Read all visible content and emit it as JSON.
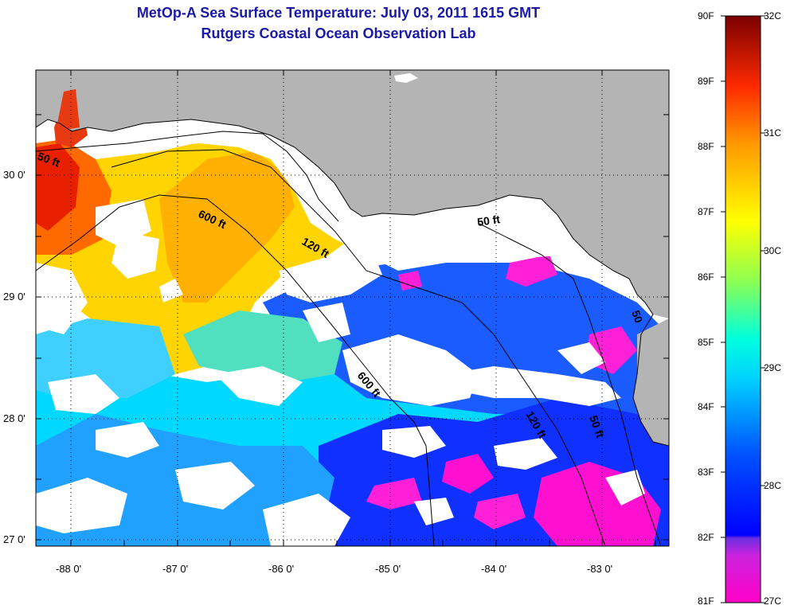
{
  "header": {
    "title": "MetOp-A Sea Surface Temperature:  July 03, 2011 1615 GMT",
    "subtitle": "Rutgers Coastal Ocean Observation Lab"
  },
  "map": {
    "lat_ticks": [
      "30 0'",
      "29 0'",
      "28 0'",
      "27 0'"
    ],
    "lon_ticks": [
      "-88 0'",
      "-87 0'",
      "-86 0'",
      "-85 0'",
      "-84 0'",
      "-83 0'"
    ],
    "contour_labels": [
      "50 ft",
      "600 ft",
      "120 ft",
      "50 ft",
      "600 ft",
      "120 ft",
      "50 ft",
      "50"
    ],
    "colors": {
      "land": "#b4b4b4",
      "cloud": "#ffffff",
      "contour": "#000000"
    }
  },
  "colorbar": {
    "fahrenheit": [
      "90F",
      "89F",
      "88F",
      "87F",
      "86F",
      "85F",
      "84F",
      "83F",
      "82F",
      "81F"
    ],
    "celsius": [
      "32C",
      "31C",
      "30C",
      "29C",
      "28C",
      "27C"
    ],
    "gradient": [
      "#ff00c8",
      "#8a2be2",
      "#0000ff",
      "#0080ff",
      "#00ffff",
      "#80ff80",
      "#ffff00",
      "#ff8000",
      "#ff0000",
      "#8b0000"
    ]
  }
}
